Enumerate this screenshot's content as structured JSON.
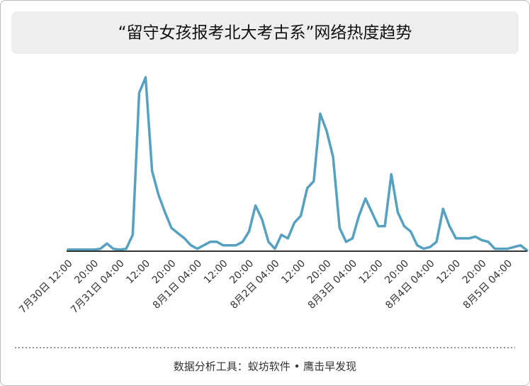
{
  "chart_data": {
    "type": "line",
    "title": "“留守女孩报考北大考古系”网络热度趋势",
    "source": "数据分析工具：蚁坊软件 • 鹰击早发现",
    "color": "#56a0c0",
    "ylim": [
      0,
      100
    ],
    "categories": [
      "7月30日 12:00",
      null,
      null,
      null,
      "20:00",
      null,
      null,
      null,
      "7月31日 04:00",
      null,
      null,
      null,
      "12:00",
      null,
      null,
      null,
      "20:00",
      null,
      null,
      null,
      "8月1日 04:00",
      null,
      null,
      null,
      "12:00",
      null,
      null,
      null,
      "20:00",
      null,
      null,
      null,
      "8月2日 04:00",
      null,
      null,
      null,
      "12:00",
      null,
      null,
      null,
      "20:00",
      null,
      null,
      null,
      "8月3日 04:00",
      null,
      null,
      null,
      "12:00",
      null,
      null,
      null,
      "20:00",
      null,
      null,
      null,
      "8月4日 04:00",
      null,
      null,
      null,
      "12:00",
      null,
      null,
      null,
      "20:00",
      null,
      null,
      null,
      "8月5日 04:00",
      null,
      null,
      null
    ],
    "values": [
      0.5,
      0.5,
      0.5,
      0.5,
      0.5,
      1,
      4,
      1,
      0.5,
      1,
      9,
      91,
      100,
      46,
      32,
      22,
      13,
      10,
      7,
      3,
      1,
      3,
      5,
      5,
      3,
      3,
      3,
      5,
      11,
      26,
      18,
      5,
      1,
      9,
      7,
      16,
      20,
      36,
      40,
      79,
      69,
      54,
      13,
      5,
      7,
      20,
      30,
      22,
      14,
      14,
      44,
      22,
      14,
      11,
      3,
      1,
      2,
      5,
      24,
      14,
      7,
      7,
      7,
      8,
      6,
      5,
      1,
      1,
      1,
      2,
      3,
      0
    ]
  }
}
